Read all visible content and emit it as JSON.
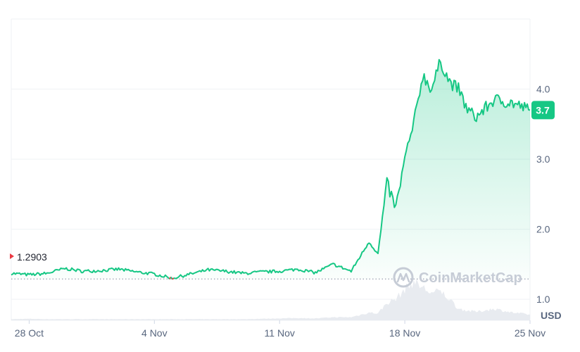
{
  "chart_data": {
    "type": "line",
    "currency_unit": "USD",
    "x_ticks": [
      "28 Oct",
      "4 Nov",
      "11 Nov",
      "18 Nov",
      "25 Nov"
    ],
    "x_range": [
      "27 Oct",
      "25 Nov"
    ],
    "y_ticks": [
      "1.0",
      "2.0",
      "3.0",
      "4.0"
    ],
    "y_range": [
      0.7,
      5.0
    ],
    "open_price": 1.2903,
    "open_label": "1.2903",
    "current_price": 3.7,
    "current_label": "3.7",
    "grid": true,
    "series": [
      {
        "values_x": [
          "27 Oct",
          "28 Oct",
          "29 Oct",
          "30 Oct",
          "31 Oct",
          "1 Nov",
          "2 Nov",
          "3 Nov",
          "4 Nov",
          "5 Nov",
          "6 Nov",
          "7 Nov",
          "8 Nov",
          "9 Nov",
          "10 Nov",
          "11 Nov",
          "12 Nov",
          "13 Nov",
          "14 Nov",
          "15 Nov",
          "16 Nov",
          "16.5 Nov",
          "17 Nov",
          "17.5 Nov",
          "18 Nov",
          "18.5 Nov",
          "19 Nov",
          "19.5 Nov",
          "20 Nov",
          "20.5 Nov",
          "21 Nov",
          "21.5 Nov",
          "22 Nov",
          "23 Nov",
          "24 Nov",
          "25 Nov"
        ],
        "values": [
          1.37,
          1.35,
          1.37,
          1.44,
          1.4,
          1.41,
          1.43,
          1.39,
          1.36,
          1.3,
          1.36,
          1.42,
          1.4,
          1.37,
          1.39,
          1.4,
          1.43,
          1.38,
          1.5,
          1.4,
          1.82,
          1.65,
          2.65,
          2.3,
          3.0,
          3.5,
          4.2,
          4.0,
          4.4,
          4.1,
          4.0,
          3.7,
          3.6,
          3.85,
          3.8,
          3.7
        ]
      }
    ],
    "volume": [
      0.03,
      0.04,
      0.03,
      0.03,
      0.03,
      0.03,
      0.03,
      0.03,
      0.03,
      0.03,
      0.03,
      0.03,
      0.03,
      0.03,
      0.04,
      0.05,
      0.06,
      0.05,
      0.08,
      0.08,
      0.2,
      0.18,
      0.45,
      0.55,
      0.8,
      1.0,
      0.85,
      0.7,
      0.75,
      0.55,
      0.3,
      0.25,
      0.22,
      0.3,
      0.2,
      0.15
    ],
    "colors": {
      "up": "#16c784",
      "down": "#ea3943",
      "grid": "#eff2f5",
      "volume": "#e8ebf0"
    }
  },
  "watermark": {
    "text": "CoinMarketCap"
  }
}
